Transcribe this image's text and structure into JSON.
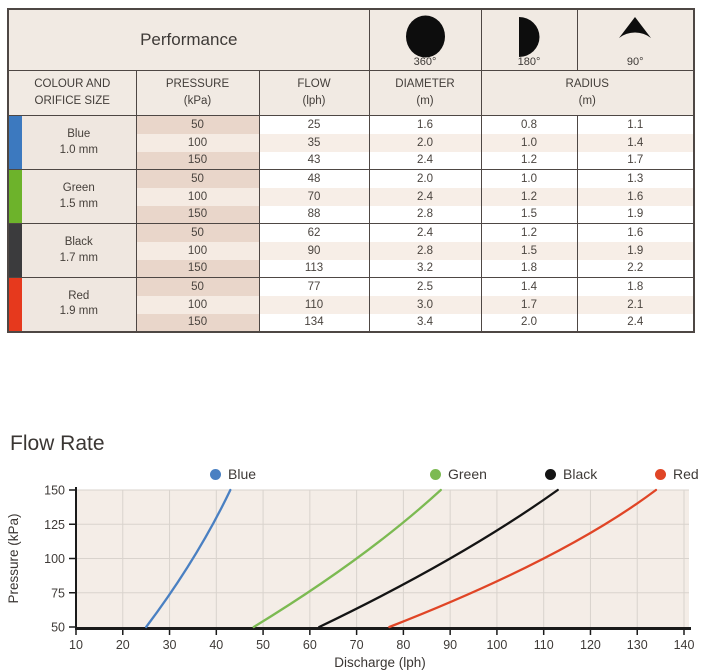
{
  "table": {
    "title": "Performance",
    "patterns": [
      {
        "icon": "full-circle-icon",
        "label": "360°"
      },
      {
        "icon": "half-circle-icon",
        "label": "180°"
      },
      {
        "icon": "quarter-sector-icon",
        "label": "90°"
      }
    ],
    "headers": [
      {
        "line1": "COLOUR AND",
        "line2": "ORIFICE SIZE"
      },
      {
        "line1": "PRESSURE",
        "line2": "(kPa)"
      },
      {
        "line1": "FLOW",
        "line2": "(lph)"
      },
      {
        "line1": "DIAMETER",
        "line2": "(m)"
      },
      {
        "line1": "RADIUS",
        "line2": "(m)"
      }
    ],
    "groups": [
      {
        "name": "Blue",
        "orifice": "1.0 mm",
        "color": "#3c79bf",
        "rows": [
          [
            "50",
            "25",
            "1.6",
            "0.8",
            "1.1"
          ],
          [
            "100",
            "35",
            "2.0",
            "1.0",
            "1.4"
          ],
          [
            "150",
            "43",
            "2.4",
            "1.2",
            "1.7"
          ]
        ]
      },
      {
        "name": "Green",
        "orifice": "1.5 mm",
        "color": "#6db32b",
        "rows": [
          [
            "50",
            "48",
            "2.0",
            "1.0",
            "1.3"
          ],
          [
            "100",
            "70",
            "2.4",
            "1.2",
            "1.6"
          ],
          [
            "150",
            "88",
            "2.8",
            "1.5",
            "1.9"
          ]
        ]
      },
      {
        "name": "Black",
        "orifice": "1.7 mm",
        "color": "#3b3b3d",
        "rows": [
          [
            "50",
            "62",
            "2.4",
            "1.2",
            "1.6"
          ],
          [
            "100",
            "90",
            "2.8",
            "1.5",
            "1.9"
          ],
          [
            "150",
            "113",
            "3.2",
            "1.8",
            "2.2"
          ]
        ]
      },
      {
        "name": "Red",
        "orifice": "1.9 mm",
        "color": "#e6391d",
        "rows": [
          [
            "50",
            "77",
            "2.5",
            "1.4",
            "1.8"
          ],
          [
            "100",
            "110",
            "3.0",
            "1.7",
            "2.1"
          ],
          [
            "150",
            "134",
            "3.4",
            "2.0",
            "2.4"
          ]
        ]
      }
    ]
  },
  "chart_data": {
    "type": "line",
    "title": "Flow Rate",
    "xlabel": "Discharge (lph)",
    "ylabel": "Pressure (kPa)",
    "xlim": [
      10,
      140
    ],
    "ylim": [
      50,
      150
    ],
    "x_ticks": [
      10,
      20,
      30,
      40,
      50,
      60,
      70,
      80,
      90,
      100,
      110,
      120,
      130,
      140
    ],
    "y_ticks": [
      50,
      75,
      100,
      125,
      150
    ],
    "grid": true,
    "legend_position": "top",
    "plot_bg": "#f4ede7",
    "grid_color": "#d9d3cd",
    "series": [
      {
        "name": "Blue",
        "color": "#4a80c2",
        "points": [
          [
            25,
            50
          ],
          [
            35,
            100
          ],
          [
            43,
            150
          ]
        ]
      },
      {
        "name": "Green",
        "color": "#7cba52",
        "points": [
          [
            48,
            50
          ],
          [
            70,
            100
          ],
          [
            88,
            150
          ]
        ]
      },
      {
        "name": "Black",
        "color": "#141414",
        "points": [
          [
            62,
            50
          ],
          [
            90,
            100
          ],
          [
            113,
            150
          ]
        ]
      },
      {
        "name": "Red",
        "color": "#e04526",
        "points": [
          [
            77,
            50
          ],
          [
            110,
            100
          ],
          [
            134,
            150
          ]
        ]
      }
    ]
  }
}
